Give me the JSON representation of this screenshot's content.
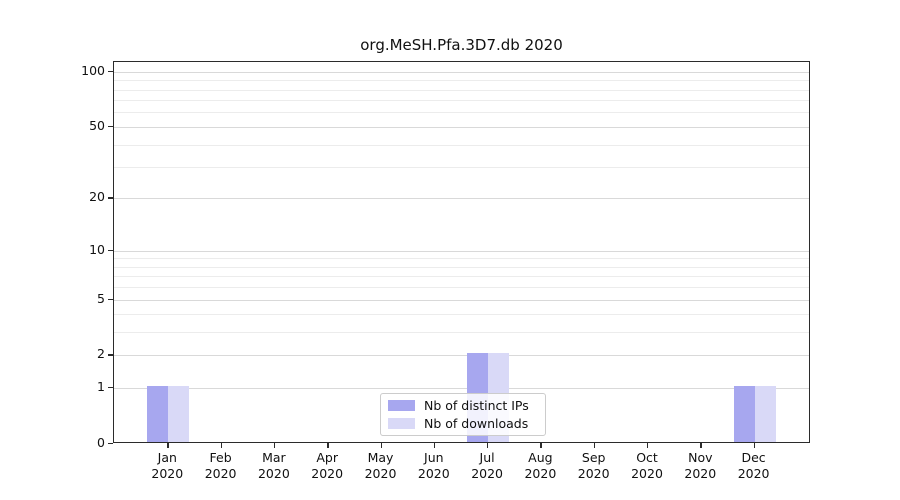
{
  "chart_data": {
    "type": "bar",
    "title": "org.MeSH.Pfa.3D7.db 2020",
    "yscale": "log1p",
    "ylim": [
      0,
      113
    ],
    "grid": "horizontal",
    "categories": [
      {
        "label": "Jan",
        "sub": "2020"
      },
      {
        "label": "Feb",
        "sub": "2020"
      },
      {
        "label": "Mar",
        "sub": "2020"
      },
      {
        "label": "Apr",
        "sub": "2020"
      },
      {
        "label": "May",
        "sub": "2020"
      },
      {
        "label": "Jun",
        "sub": "2020"
      },
      {
        "label": "Jul",
        "sub": "2020"
      },
      {
        "label": "Aug",
        "sub": "2020"
      },
      {
        "label": "Sep",
        "sub": "2020"
      },
      {
        "label": "Oct",
        "sub": "2020"
      },
      {
        "label": "Nov",
        "sub": "2020"
      },
      {
        "label": "Dec",
        "sub": "2020"
      }
    ],
    "series": [
      {
        "name": "Nb of distinct IPs",
        "color": "#a7a7ef",
        "values": [
          1,
          0,
          0,
          0,
          0,
          0,
          2,
          0,
          0,
          0,
          0,
          1
        ]
      },
      {
        "name": "Nb of downloads",
        "color": "#d9d9f7",
        "values": [
          1,
          0,
          0,
          0,
          0,
          0,
          2,
          0,
          0,
          0,
          0,
          1
        ]
      }
    ],
    "yticks": [
      0,
      1,
      2,
      5,
      10,
      20,
      50,
      100
    ],
    "ytick_labels": [
      "0",
      "1",
      "2",
      "5",
      "10",
      "20",
      "50",
      "100"
    ],
    "grid_minor_values": [
      3,
      4,
      6,
      7,
      8,
      9,
      30,
      40,
      60,
      70,
      80,
      90
    ],
    "grid_major_values": [
      1,
      2,
      5,
      10,
      20,
      50,
      100
    ],
    "legend_position": "lower center"
  },
  "legend": {
    "items": [
      {
        "label": "Nb of distinct IPs"
      },
      {
        "label": "Nb of downloads"
      }
    ]
  }
}
